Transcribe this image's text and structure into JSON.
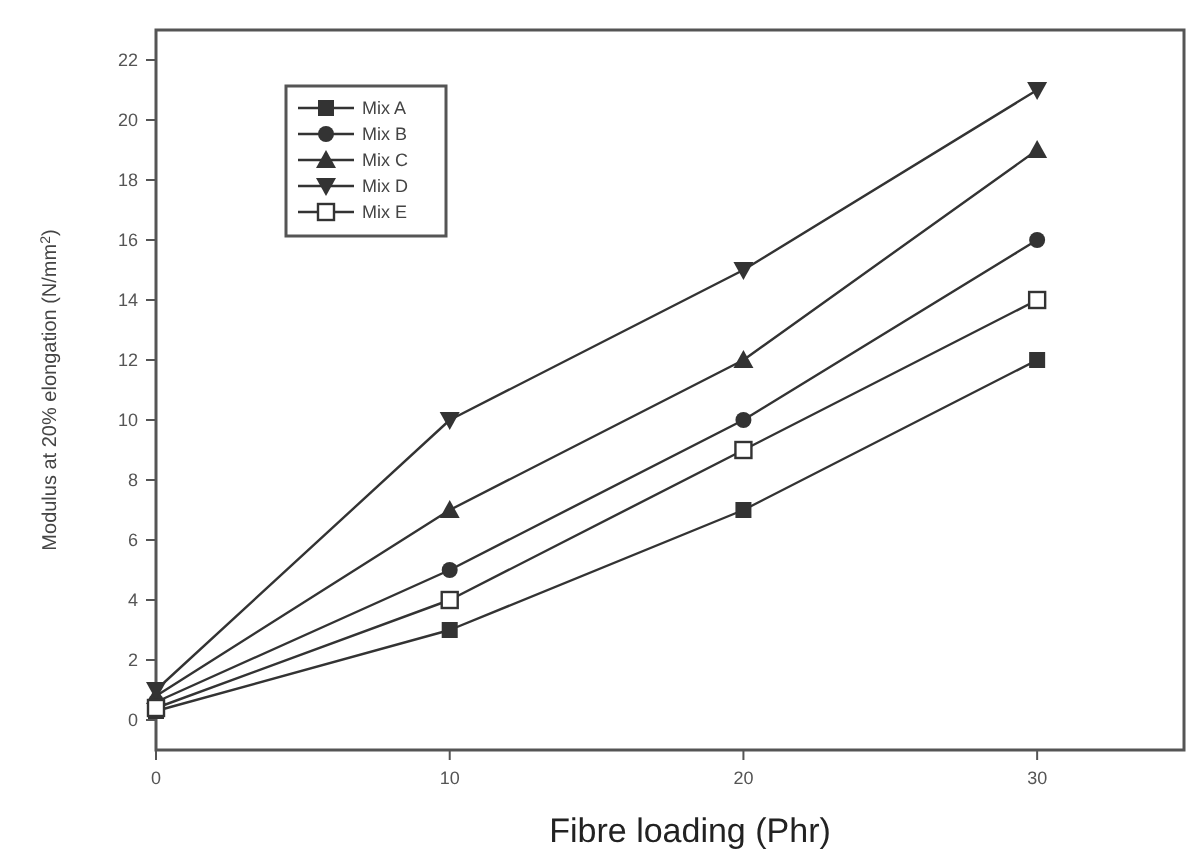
{
  "chart_data": {
    "type": "line",
    "xlabel": "Fibre loading (Phr)",
    "ylabel": "Modulus at 20% elongation (N/mm$^{2}$)",
    "x": [
      0,
      10,
      20,
      30
    ],
    "xlim": [
      0,
      35
    ],
    "xticks": [
      0,
      10,
      20,
      30
    ],
    "ylim": [
      -1,
      23
    ],
    "yticks": [
      0,
      2,
      4,
      6,
      8,
      10,
      12,
      14,
      16,
      18,
      20,
      22
    ],
    "grid": false,
    "legend": "top left",
    "line_style": "solid",
    "series": [
      {
        "name": "Mix A",
        "color": "#333333",
        "marker": "square",
        "values": [
          0.3,
          3,
          7,
          12
        ]
      },
      {
        "name": "Mix B",
        "color": "#333333",
        "marker": "circle",
        "values": [
          0.6,
          5,
          10,
          16
        ]
      },
      {
        "name": "Mix C",
        "color": "#333333",
        "marker": "triangle",
        "values": [
          0.8,
          7,
          12,
          19
        ]
      },
      {
        "name": "Mix D",
        "color": "#333333",
        "marker": "triangle-down",
        "values": [
          1,
          10,
          15,
          21
        ]
      },
      {
        "name": "Mix E",
        "color": "#333333",
        "marker": "square",
        "values": [
          0.4,
          4,
          9,
          14
        ]
      }
    ]
  }
}
